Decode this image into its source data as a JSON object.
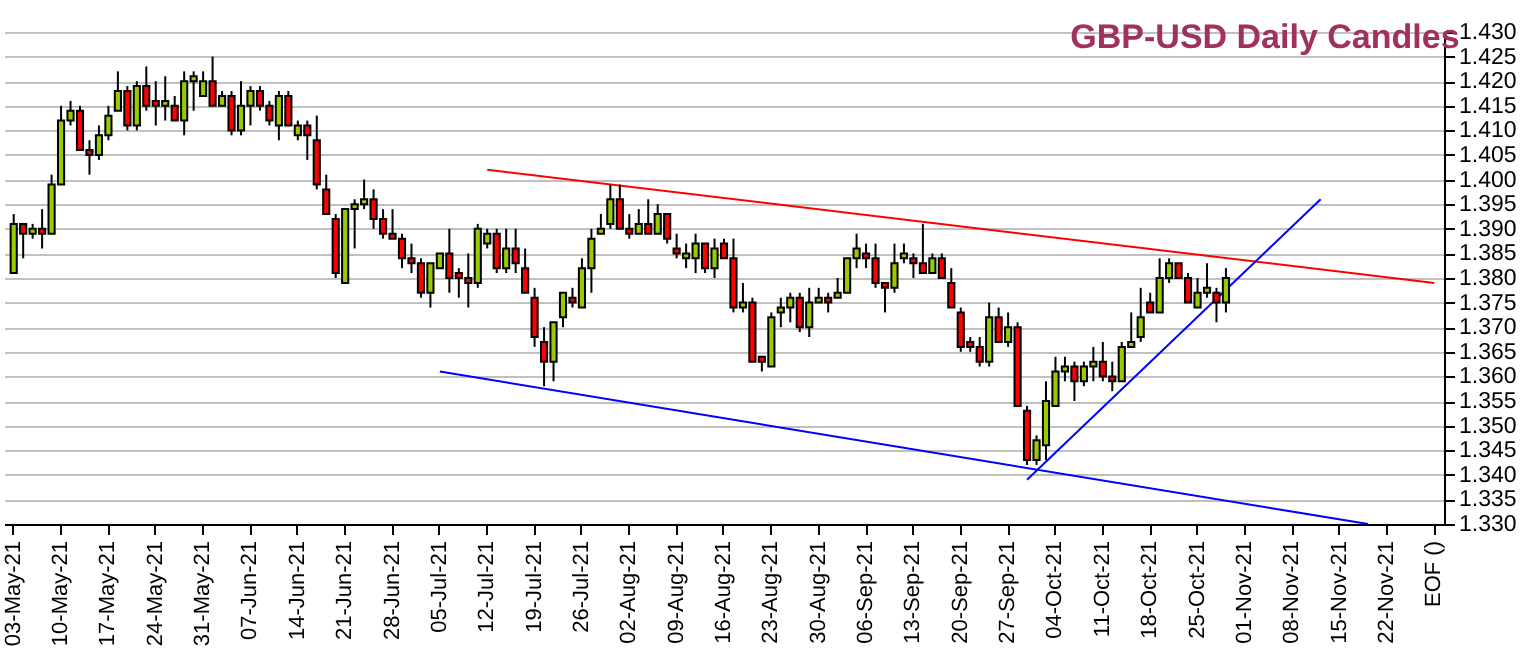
{
  "chart_data": {
    "type": "candlestick",
    "title": "GBP-USD Daily Candles",
    "categories": [
      "03-May-21",
      null,
      null,
      null,
      null,
      "10-May-21",
      null,
      null,
      null,
      null,
      "17-May-21",
      null,
      null,
      null,
      null,
      "24-May-21",
      null,
      null,
      null,
      null,
      "31-May-21",
      null,
      null,
      null,
      null,
      "07-Jun-21",
      null,
      null,
      null,
      null,
      "14-Jun-21",
      null,
      null,
      null,
      null,
      "21-Jun-21",
      null,
      null,
      null,
      null,
      "28-Jun-21",
      null,
      null,
      null,
      null,
      "05-Jul-21",
      null,
      null,
      null,
      null,
      "12-Jul-21",
      null,
      null,
      null,
      null,
      "19-Jul-21",
      null,
      null,
      null,
      null,
      "26-Jul-21",
      null,
      null,
      null,
      null,
      "02-Aug-21",
      null,
      null,
      null,
      null,
      "09-Aug-21",
      null,
      null,
      null,
      null,
      "16-Aug-21",
      null,
      null,
      null,
      null,
      "23-Aug-21",
      null,
      null,
      null,
      null,
      "30-Aug-21",
      null,
      null,
      null,
      null,
      "06-Sep-21",
      null,
      null,
      null,
      null,
      "13-Sep-21",
      null,
      null,
      null,
      null,
      "20-Sep-21",
      null,
      null,
      null,
      null,
      "27-Sep-21",
      null,
      null,
      null,
      null,
      "04-Oct-21",
      null,
      null,
      null,
      null,
      "11-Oct-21",
      null,
      null,
      null,
      null,
      "18-Oct-21",
      null,
      null,
      null,
      null,
      "25-Oct-21",
      null,
      null,
      null,
      null,
      "01-Nov-21",
      null,
      null,
      null,
      null,
      "08-Nov-21",
      null,
      null,
      null,
      null,
      "15-Nov-21",
      null,
      null,
      null,
      null,
      "22-Nov-21",
      null,
      null,
      null,
      null,
      "EOF ()"
    ],
    "series": [
      {
        "type": "line",
        "color": "#ff0000",
        "values": [
          null,
          null,
          null,
          null,
          null,
          null,
          null,
          null,
          null,
          null,
          null,
          null,
          null,
          null,
          null,
          null,
          null,
          null,
          null,
          null,
          null,
          null,
          null,
          null,
          null,
          null,
          null,
          null,
          null,
          null,
          null,
          null,
          null,
          null,
          null,
          null,
          null,
          null,
          null,
          null,
          null,
          null,
          null,
          null,
          null,
          null,
          null,
          null,
          null,
          null,
          1.402,
          null,
          null,
          null,
          null,
          null,
          null,
          null,
          null,
          null,
          null,
          null,
          null,
          null,
          null,
          null,
          null,
          null,
          null,
          null,
          null,
          null,
          null,
          null,
          null,
          null,
          null,
          null,
          null,
          null,
          null,
          null,
          null,
          null,
          null,
          null,
          null,
          null,
          null,
          null,
          null,
          null,
          null,
          null,
          null,
          null,
          null,
          null,
          null,
          null,
          null,
          null,
          null,
          null,
          null,
          null,
          null,
          null,
          null,
          null,
          null,
          null,
          null,
          null,
          null,
          null,
          null,
          null,
          null,
          null,
          null,
          null,
          null,
          null,
          null,
          null,
          null,
          null,
          null,
          null,
          null,
          null,
          null,
          null,
          null,
          null,
          null,
          null,
          null,
          null,
          null,
          null,
          null,
          null,
          null,
          null,
          null,
          null,
          null,
          null,
          1.379
        ]
      },
      {
        "type": "line",
        "color": "#0000ff",
        "values": [
          null,
          null,
          null,
          null,
          null,
          null,
          null,
          null,
          null,
          null,
          null,
          null,
          null,
          null,
          null,
          null,
          null,
          null,
          null,
          null,
          null,
          null,
          null,
          null,
          null,
          null,
          null,
          null,
          null,
          null,
          null,
          null,
          null,
          null,
          null,
          null,
          null,
          null,
          null,
          null,
          null,
          null,
          null,
          null,
          null,
          1.361,
          null,
          null,
          null,
          null,
          null,
          null,
          null,
          null,
          null,
          null,
          null,
          null,
          null,
          null,
          null,
          null,
          null,
          null,
          null,
          null,
          null,
          null,
          null,
          null,
          null,
          null,
          null,
          null,
          null,
          null,
          null,
          null,
          null,
          null,
          null,
          null,
          null,
          null,
          null,
          null,
          null,
          null,
          null,
          null,
          null,
          null,
          null,
          null,
          null,
          null,
          null,
          null,
          null,
          null,
          null,
          null,
          null,
          null,
          null,
          null,
          null,
          null,
          null,
          null,
          null,
          null,
          null,
          null,
          null,
          null,
          null,
          null,
          null,
          null,
          null,
          null,
          null,
          null,
          null,
          null,
          null,
          null,
          null,
          null,
          null,
          null,
          null,
          null,
          null,
          null,
          null,
          null,
          null,
          null,
          null,
          null,
          null,
          1.33,
          null,
          null,
          null,
          null,
          null,
          null,
          null
        ]
      },
      {
        "type": "line",
        "color": "#0000ff",
        "values": [
          null,
          null,
          null,
          null,
          null,
          null,
          null,
          null,
          null,
          null,
          null,
          null,
          null,
          null,
          null,
          null,
          null,
          null,
          null,
          null,
          null,
          null,
          null,
          null,
          null,
          null,
          null,
          null,
          null,
          null,
          null,
          null,
          null,
          null,
          null,
          null,
          null,
          null,
          null,
          null,
          null,
          null,
          null,
          null,
          null,
          null,
          null,
          null,
          null,
          null,
          null,
          null,
          null,
          null,
          null,
          null,
          null,
          null,
          null,
          null,
          null,
          null,
          null,
          null,
          null,
          null,
          null,
          null,
          null,
          null,
          null,
          null,
          null,
          null,
          null,
          null,
          null,
          null,
          null,
          null,
          null,
          null,
          null,
          null,
          null,
          null,
          null,
          null,
          null,
          null,
          null,
          null,
          null,
          null,
          null,
          null,
          null,
          null,
          null,
          null,
          null,
          null,
          null,
          null,
          null,
          null,
          null,
          1.339,
          null,
          null,
          null,
          null,
          null,
          null,
          null,
          null,
          null,
          null,
          null,
          null,
          null,
          null,
          null,
          null,
          null,
          null,
          null,
          null,
          null,
          null,
          null,
          null,
          null,
          null,
          null,
          null,
          null,
          null,
          1.396,
          null,
          null,
          null,
          null,
          null,
          null,
          null,
          null,
          null,
          null,
          null,
          null
        ]
      },
      {
        "ohlc": [
          [
            1.381,
            1.393,
            1.381,
            1.391
          ],
          [
            1.391,
            1.391,
            1.384,
            1.389
          ],
          [
            1.389,
            1.391,
            1.388,
            1.39
          ],
          [
            1.39,
            1.394,
            1.386,
            1.389
          ],
          [
            1.389,
            1.401,
            1.389,
            1.399
          ],
          [
            1.399,
            1.415,
            1.399,
            1.412
          ],
          [
            1.412,
            1.416,
            1.411,
            1.414
          ],
          [
            1.414,
            1.415,
            1.406,
            1.406
          ],
          [
            1.406,
            1.408,
            1.401,
            1.405
          ],
          [
            1.405,
            1.411,
            1.404,
            1.409
          ],
          [
            1.409,
            1.415,
            1.408,
            1.413
          ],
          [
            1.414,
            1.422,
            1.414,
            1.418
          ],
          [
            1.418,
            1.419,
            1.41,
            1.411
          ],
          [
            1.411,
            1.42,
            1.41,
            1.419
          ],
          [
            1.419,
            1.423,
            1.414,
            1.415
          ],
          [
            1.416,
            1.42,
            1.411,
            1.415
          ],
          [
            1.415,
            1.421,
            1.412,
            1.416
          ],
          [
            1.415,
            1.417,
            1.412,
            1.412
          ],
          [
            1.412,
            1.422,
            1.409,
            1.42
          ],
          [
            1.42,
            1.422,
            1.414,
            1.421
          ],
          [
            1.417,
            1.422,
            1.417,
            1.42
          ],
          [
            1.42,
            1.425,
            1.415,
            1.415
          ],
          [
            1.415,
            1.418,
            1.415,
            1.417
          ],
          [
            1.417,
            1.418,
            1.409,
            1.41
          ],
          [
            1.41,
            1.42,
            1.409,
            1.415
          ],
          [
            1.415,
            1.419,
            1.411,
            1.418
          ],
          [
            1.418,
            1.419,
            1.414,
            1.415
          ],
          [
            1.415,
            1.416,
            1.411,
            1.412
          ],
          [
            1.411,
            1.418,
            1.408,
            1.417
          ],
          [
            1.417,
            1.418,
            1.411,
            1.411
          ],
          [
            1.409,
            1.412,
            1.408,
            1.411
          ],
          [
            1.411,
            1.412,
            1.404,
            1.409
          ],
          [
            1.408,
            1.413,
            1.398,
            1.399
          ],
          [
            1.398,
            1.401,
            1.393,
            1.393
          ],
          [
            1.392,
            1.393,
            1.38,
            1.381
          ],
          [
            1.379,
            1.394,
            1.379,
            1.394
          ],
          [
            1.394,
            1.396,
            1.386,
            1.395
          ],
          [
            1.395,
            1.4,
            1.394,
            1.396
          ],
          [
            1.396,
            1.398,
            1.39,
            1.392
          ],
          [
            1.392,
            1.394,
            1.388,
            1.389
          ],
          [
            1.389,
            1.394,
            1.388,
            1.388
          ],
          [
            1.388,
            1.389,
            1.382,
            1.384
          ],
          [
            1.384,
            1.387,
            1.381,
            1.383
          ],
          [
            1.383,
            1.384,
            1.376,
            1.377
          ],
          [
            1.377,
            1.383,
            1.374,
            1.383
          ],
          [
            1.382,
            1.385,
            1.382,
            1.385
          ],
          [
            1.385,
            1.39,
            1.377,
            1.38
          ],
          [
            1.381,
            1.382,
            1.376,
            1.38
          ],
          [
            1.38,
            1.385,
            1.374,
            1.379
          ],
          [
            1.379,
            1.391,
            1.378,
            1.39
          ],
          [
            1.387,
            1.39,
            1.386,
            1.389
          ],
          [
            1.389,
            1.39,
            1.381,
            1.382
          ],
          [
            1.382,
            1.39,
            1.381,
            1.386
          ],
          [
            1.386,
            1.39,
            1.381,
            1.383
          ],
          [
            1.382,
            1.386,
            1.377,
            1.377
          ],
          [
            1.376,
            1.378,
            1.366,
            1.368
          ],
          [
            1.367,
            1.37,
            1.358,
            1.363
          ],
          [
            1.363,
            1.371,
            1.359,
            1.371
          ],
          [
            1.372,
            1.377,
            1.37,
            1.377
          ],
          [
            1.376,
            1.378,
            1.374,
            1.375
          ],
          [
            1.374,
            1.384,
            1.374,
            1.382
          ],
          [
            1.382,
            1.39,
            1.377,
            1.388
          ],
          [
            1.389,
            1.393,
            1.389,
            1.39
          ],
          [
            1.391,
            1.399,
            1.39,
            1.396
          ],
          [
            1.396,
            1.399,
            1.39,
            1.39
          ],
          [
            1.39,
            1.393,
            1.388,
            1.389
          ],
          [
            1.389,
            1.394,
            1.389,
            1.391
          ],
          [
            1.391,
            1.396,
            1.389,
            1.389
          ],
          [
            1.389,
            1.395,
            1.389,
            1.393
          ],
          [
            1.393,
            1.393,
            1.387,
            1.388
          ],
          [
            1.386,
            1.389,
            1.384,
            1.385
          ],
          [
            1.384,
            1.387,
            1.382,
            1.385
          ],
          [
            1.384,
            1.389,
            1.381,
            1.387
          ],
          [
            1.387,
            1.387,
            1.381,
            1.382
          ],
          [
            1.382,
            1.388,
            1.38,
            1.386
          ],
          [
            1.387,
            1.388,
            1.384,
            1.384
          ],
          [
            1.384,
            1.388,
            1.373,
            1.374
          ],
          [
            1.374,
            1.379,
            1.373,
            1.375
          ],
          [
            1.375,
            1.376,
            1.363,
            1.363
          ],
          [
            1.364,
            1.364,
            1.361,
            1.363
          ],
          [
            1.362,
            1.373,
            1.362,
            1.372
          ],
          [
            1.373,
            1.376,
            1.37,
            1.374
          ],
          [
            1.374,
            1.377,
            1.371,
            1.376
          ],
          [
            1.376,
            1.377,
            1.369,
            1.37
          ],
          [
            1.37,
            1.378,
            1.368,
            1.375
          ],
          [
            1.375,
            1.378,
            1.375,
            1.376
          ],
          [
            1.376,
            1.377,
            1.373,
            1.375
          ],
          [
            1.376,
            1.38,
            1.376,
            1.377
          ],
          [
            1.377,
            1.384,
            1.377,
            1.384
          ],
          [
            1.384,
            1.389,
            1.382,
            1.386
          ],
          [
            1.385,
            1.387,
            1.382,
            1.384
          ],
          [
            1.384,
            1.387,
            1.378,
            1.379
          ],
          [
            1.379,
            1.379,
            1.373,
            1.378
          ],
          [
            1.378,
            1.387,
            1.377,
            1.383
          ],
          [
            1.384,
            1.387,
            1.383,
            1.385
          ],
          [
            1.384,
            1.385,
            1.38,
            1.383
          ],
          [
            1.383,
            1.391,
            1.381,
            1.381
          ],
          [
            1.381,
            1.385,
            1.381,
            1.384
          ],
          [
            1.384,
            1.385,
            1.38,
            1.38
          ],
          [
            1.379,
            1.382,
            1.374,
            1.374
          ],
          [
            1.373,
            1.374,
            1.365,
            1.366
          ],
          [
            1.367,
            1.368,
            1.365,
            1.366
          ],
          [
            1.366,
            1.368,
            1.362,
            1.363
          ],
          [
            1.363,
            1.375,
            1.362,
            1.372
          ],
          [
            1.372,
            1.374,
            1.367,
            1.367
          ],
          [
            1.367,
            1.373,
            1.366,
            1.37
          ],
          [
            1.37,
            1.371,
            1.354,
            1.354
          ],
          [
            1.353,
            1.354,
            1.342,
            1.343
          ],
          [
            1.343,
            1.348,
            1.342,
            1.347
          ],
          [
            1.346,
            1.359,
            1.343,
            1.355
          ],
          [
            1.354,
            1.364,
            1.354,
            1.361
          ],
          [
            1.361,
            1.364,
            1.359,
            1.362
          ],
          [
            1.362,
            1.363,
            1.355,
            1.359
          ],
          [
            1.359,
            1.363,
            1.358,
            1.362
          ],
          [
            1.362,
            1.366,
            1.359,
            1.363
          ],
          [
            1.363,
            1.367,
            1.359,
            1.36
          ],
          [
            1.36,
            1.363,
            1.357,
            1.359
          ],
          [
            1.359,
            1.367,
            1.359,
            1.366
          ],
          [
            1.366,
            1.373,
            1.366,
            1.367
          ],
          [
            1.368,
            1.378,
            1.367,
            1.372
          ],
          [
            1.375,
            1.377,
            1.373,
            1.373
          ],
          [
            1.373,
            1.384,
            1.373,
            1.38
          ],
          [
            1.38,
            1.384,
            1.379,
            1.383
          ],
          [
            1.383,
            1.383,
            1.38,
            1.38
          ],
          [
            1.38,
            1.381,
            1.375,
            1.375
          ],
          [
            1.374,
            1.38,
            1.374,
            1.377
          ],
          [
            1.377,
            1.383,
            1.376,
            1.378
          ],
          [
            1.377,
            1.378,
            1.371,
            1.375
          ],
          [
            1.375,
            1.382,
            1.373,
            1.38
          ],
          null,
          null,
          null,
          null,
          null,
          null,
          null,
          null,
          null,
          null,
          null,
          null,
          null,
          null,
          null,
          null,
          null,
          null,
          null,
          null,
          null,
          null
        ]
      }
    ],
    "ylim": [
      1.33,
      1.43
    ],
    "yticks": [
      {
        "value": 1.33,
        "label": "1.330"
      },
      {
        "value": 1.335,
        "label": "1.335"
      },
      {
        "value": 1.34,
        "label": "1.340"
      },
      {
        "value": 1.345,
        "label": "1.345"
      },
      {
        "value": 1.35,
        "label": "1.350"
      },
      {
        "value": 1.355,
        "label": "1.355"
      },
      {
        "value": 1.36,
        "label": "1.360"
      },
      {
        "value": 1.365,
        "label": "1.365"
      },
      {
        "value": 1.37,
        "label": "1.370"
      },
      {
        "value": 1.375,
        "label": "1.375"
      },
      {
        "value": 1.38,
        "label": "1.380"
      },
      {
        "value": 1.385,
        "label": "1.385"
      },
      {
        "value": 1.39,
        "label": "1.390"
      },
      {
        "value": 1.395,
        "label": "1.395"
      },
      {
        "value": 1.4,
        "label": "1.400"
      },
      {
        "value": 1.405,
        "label": "1.405"
      },
      {
        "value": 1.41,
        "label": "1.410"
      },
      {
        "value": 1.415,
        "label": "1.415"
      },
      {
        "value": 1.42,
        "label": "1.420"
      },
      {
        "value": 1.425,
        "label": "1.425"
      },
      {
        "value": 1.43,
        "label": "1.430"
      }
    ],
    "grid": "y"
  }
}
